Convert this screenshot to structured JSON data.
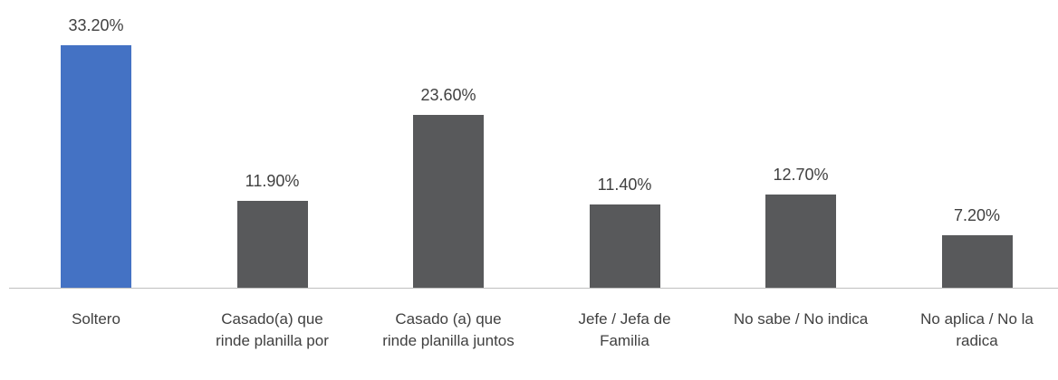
{
  "chart_data": {
    "type": "bar",
    "categories": [
      "Soltero",
      "Casado(a) que rinde planilla por",
      "Casado (a) que rinde planilla juntos",
      "Jefe / Jefa de Familia",
      "No sabe / No indica",
      "No aplica / No la radica"
    ],
    "values": [
      33.2,
      11.9,
      23.6,
      11.4,
      12.7,
      7.2
    ],
    "value_labels": [
      "33.20%",
      "11.90%",
      "23.60%",
      "11.40%",
      "12.70%",
      "7.20%"
    ],
    "colors": [
      "#4472c4",
      "#58595b",
      "#58595b",
      "#58595b",
      "#58595b",
      "#58595b"
    ]
  }
}
